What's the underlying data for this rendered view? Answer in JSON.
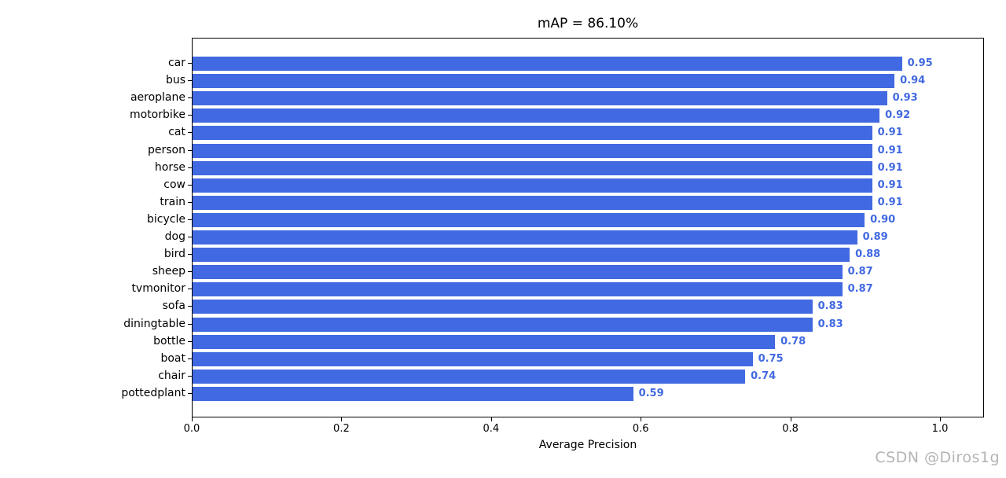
{
  "chart_data": {
    "type": "bar",
    "orientation": "horizontal",
    "title": "mAP = 86.10%",
    "xlabel": "Average Precision",
    "ylabel": "",
    "categories": [
      "car",
      "bus",
      "aeroplane",
      "motorbike",
      "cat",
      "person",
      "horse",
      "cow",
      "train",
      "bicycle",
      "dog",
      "bird",
      "sheep",
      "tvmonitor",
      "sofa",
      "diningtable",
      "bottle",
      "boat",
      "chair",
      "pottedplant"
    ],
    "values": [
      0.95,
      0.94,
      0.93,
      0.92,
      0.91,
      0.91,
      0.91,
      0.91,
      0.91,
      0.9,
      0.89,
      0.88,
      0.87,
      0.87,
      0.83,
      0.83,
      0.78,
      0.75,
      0.74,
      0.59
    ],
    "value_labels": [
      "0.95",
      "0.94",
      "0.93",
      "0.92",
      "0.91",
      "0.91",
      "0.91",
      "0.91",
      "0.91",
      "0.90",
      "0.89",
      "0.88",
      "0.87",
      "0.87",
      "0.83",
      "0.83",
      "0.78",
      "0.75",
      "0.74",
      "0.59"
    ],
    "xlim": [
      0.0,
      1.0588
    ],
    "xticks": [
      0.0,
      0.2,
      0.4,
      0.6,
      0.8,
      1.0
    ],
    "xtick_labels": [
      "0.0",
      "0.2",
      "0.4",
      "0.6",
      "0.8",
      "1.0"
    ],
    "grid": false,
    "legend": null,
    "bar_color": "#4169e1",
    "value_label_color": "#4169e1",
    "axis_color": "#000000"
  },
  "watermark": {
    "text": "CSDN @Diros1g",
    "color": "#b4b4b4"
  }
}
